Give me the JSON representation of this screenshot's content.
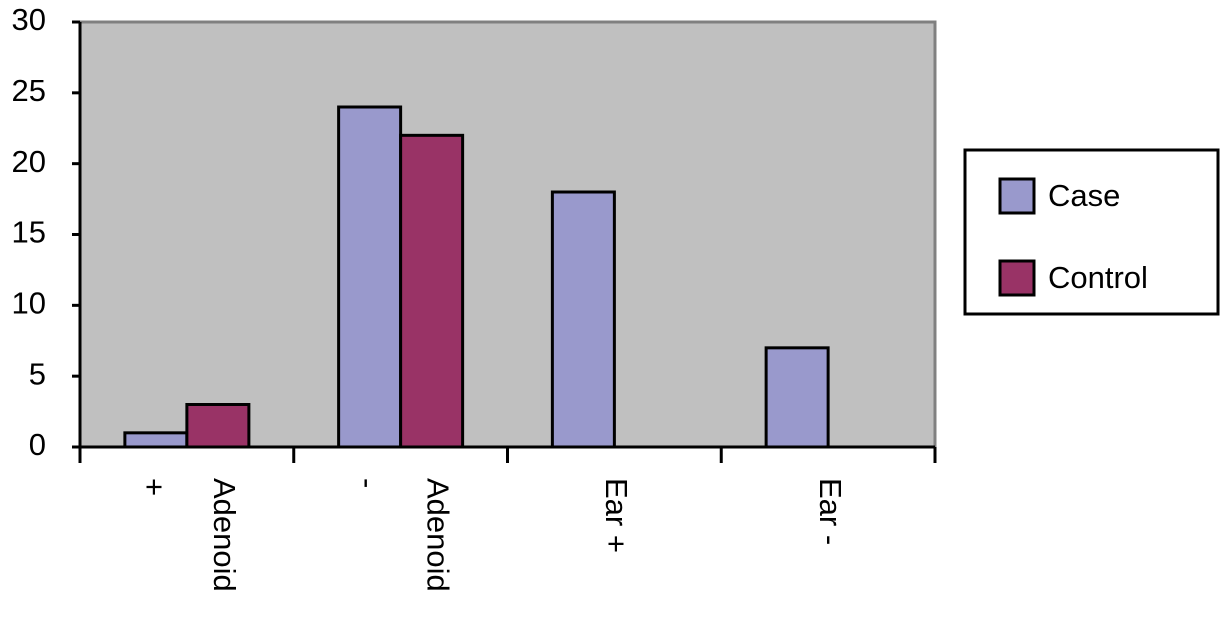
{
  "chart_data": {
    "type": "bar",
    "categories": [
      "Adenoid +",
      "Adenoid -",
      "Ear +",
      "Ear -"
    ],
    "series": [
      {
        "name": "Case",
        "color": "#9999cc",
        "values": [
          1,
          24,
          18,
          7
        ]
      },
      {
        "name": "Control",
        "color": "#993366",
        "values": [
          3,
          22,
          0,
          0
        ]
      }
    ],
    "ylim": [
      0,
      30
    ],
    "yticks": [
      0,
      5,
      10,
      15,
      20,
      25,
      30
    ],
    "plot_background": "#c0c0c0",
    "legend": "right"
  }
}
